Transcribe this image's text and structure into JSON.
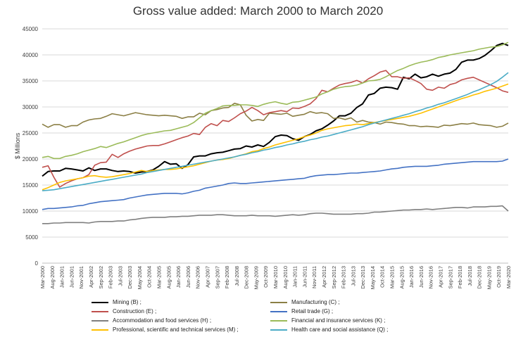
{
  "chart_data": {
    "type": "line",
    "title": "Gross value added: March 2000 to March 2020",
    "xlabel": "",
    "ylabel": "$ Millions",
    "ylim": [
      0,
      45000
    ],
    "yticks": [
      "0",
      "5000",
      "10000",
      "15000",
      "20000",
      "25000",
      "30000",
      "35000",
      "40000",
      "45000"
    ],
    "xticks": [
      "Mar-2000",
      "Aug-2000",
      "Jan-2001",
      "Jun-2001",
      "Nov-2001",
      "Apr-2002",
      "Sep-2002",
      "Feb-2003",
      "Jul-2003",
      "Dec-2003",
      "May-2004",
      "Oct-2004",
      "Mar-2005",
      "Aug-2005",
      "Jan-2006",
      "Jun-2006",
      "Nov-2006",
      "Apr-2007",
      "Sep-2007",
      "Feb-2008",
      "Jul-2008",
      "Dec-2008",
      "May-2009",
      "Oct-2009",
      "Mar-2010",
      "Aug-2010",
      "Jan-2011",
      "Jun-2011",
      "Nov-2011",
      "Apr-2012",
      "Sep-2012",
      "Feb-2013",
      "Jul-2013",
      "Dec-2013",
      "May-2014",
      "Oct-2014",
      "Mar-2015",
      "Aug-2015",
      "Jan-2016",
      "Jun-2016",
      "Nov-2016",
      "Apr-2017",
      "Sep-2017",
      "Feb-2018",
      "Jul-2018",
      "Dec-2018",
      "May-2019",
      "Oct-2019",
      "Mar-2020"
    ],
    "x": [
      "Mar-2000",
      "Jun-2000",
      "Sep-2000",
      "Dec-2000",
      "Mar-2001",
      "Jun-2001",
      "Sep-2001",
      "Dec-2001",
      "Mar-2002",
      "Jun-2002",
      "Sep-2002",
      "Dec-2002",
      "Mar-2003",
      "Jun-2003",
      "Sep-2003",
      "Dec-2003",
      "Mar-2004",
      "Jun-2004",
      "Sep-2004",
      "Dec-2004",
      "Mar-2005",
      "Jun-2005",
      "Sep-2005",
      "Dec-2005",
      "Mar-2006",
      "Jun-2006",
      "Sep-2006",
      "Dec-2006",
      "Mar-2007",
      "Jun-2007",
      "Sep-2007",
      "Dec-2007",
      "Mar-2008",
      "Jun-2008",
      "Sep-2008",
      "Dec-2008",
      "Mar-2009",
      "Jun-2009",
      "Sep-2009",
      "Dec-2009",
      "Mar-2010",
      "Jun-2010",
      "Sep-2010",
      "Dec-2010",
      "Mar-2011",
      "Jun-2011",
      "Sep-2011",
      "Dec-2011",
      "Mar-2012",
      "Jun-2012",
      "Sep-2012",
      "Dec-2012",
      "Mar-2013",
      "Jun-2013",
      "Sep-2013",
      "Dec-2013",
      "Mar-2014",
      "Jun-2014",
      "Sep-2014",
      "Dec-2014",
      "Mar-2015",
      "Jun-2015",
      "Sep-2015",
      "Dec-2015",
      "Mar-2016",
      "Jun-2016",
      "Sep-2016",
      "Dec-2016",
      "Mar-2017",
      "Jun-2017",
      "Sep-2017",
      "Dec-2017",
      "Mar-2018",
      "Jun-2018",
      "Sep-2018",
      "Dec-2018",
      "Mar-2019",
      "Jun-2019",
      "Sep-2019",
      "Dec-2019",
      "Mar-2020"
    ],
    "series": [
      {
        "name": "Mining (B) ;",
        "color": "#000000",
        "values": [
          16700,
          17600,
          17700,
          17700,
          18200,
          18100,
          17900,
          17700,
          18300,
          17800,
          18100,
          18100,
          17800,
          17600,
          17700,
          17600,
          17300,
          17500,
          17600,
          17900,
          18600,
          19500,
          19000,
          19100,
          18200,
          18900,
          20400,
          20600,
          20600,
          21000,
          21200,
          21300,
          21600,
          21900,
          22000,
          22500,
          22300,
          22700,
          22400,
          23200,
          24300,
          24600,
          24500,
          23900,
          23600,
          24300,
          24700,
          25400,
          25800,
          26500,
          27300,
          28300,
          28300,
          28800,
          29900,
          30600,
          32300,
          32600,
          33600,
          33800,
          33700,
          33400,
          35700,
          35400,
          36300,
          35600,
          35800,
          36300,
          35900,
          36300,
          36500,
          37200,
          38600,
          39000,
          39000,
          39300,
          39900,
          40800,
          41800,
          42200,
          41800
        ]
      },
      {
        "name": "Manufacturing (C) ;",
        "color": "#8b7f45",
        "values": [
          26700,
          26100,
          26600,
          26600,
          26100,
          26400,
          26400,
          27100,
          27500,
          27700,
          27800,
          28200,
          28700,
          28500,
          28300,
          28600,
          28900,
          28700,
          28500,
          28400,
          28300,
          28400,
          28300,
          28200,
          27800,
          28100,
          28100,
          28800,
          28500,
          29300,
          29500,
          29800,
          29900,
          30700,
          30400,
          28400,
          27300,
          27600,
          27400,
          28800,
          28700,
          28600,
          28800,
          28200,
          28400,
          28600,
          29100,
          28800,
          28900,
          28700,
          27800,
          27900,
          27600,
          27900,
          27100,
          27400,
          27100,
          27000,
          26700,
          27100,
          27000,
          26800,
          26700,
          26400,
          26400,
          26200,
          26300,
          26200,
          26100,
          26500,
          26400,
          26600,
          26800,
          26700,
          26900,
          26600,
          26500,
          26400,
          26100,
          26300,
          26900
        ]
      },
      {
        "name": "Construction (E) ;",
        "color": "#c0504d",
        "values": [
          18400,
          18700,
          16500,
          14600,
          15300,
          15800,
          16200,
          16400,
          17000,
          18800,
          19300,
          19400,
          20900,
          20300,
          21000,
          21500,
          21900,
          22200,
          22500,
          22600,
          22600,
          22900,
          23300,
          23700,
          24100,
          24400,
          24900,
          24700,
          26100,
          26800,
          26400,
          27400,
          27200,
          27900,
          28700,
          29200,
          29900,
          29300,
          28500,
          28900,
          29100,
          29300,
          29100,
          29800,
          29700,
          30100,
          30600,
          31600,
          33200,
          32900,
          33600,
          34200,
          34500,
          34700,
          35100,
          34600,
          35400,
          36000,
          36700,
          37000,
          35800,
          35800,
          35500,
          35600,
          35100,
          34500,
          33400,
          33200,
          33800,
          33600,
          34300,
          34600,
          35200,
          35500,
          35700,
          35200,
          34700,
          34200,
          33700,
          33100,
          32800
        ]
      },
      {
        "name": "Retail trade (G) ;",
        "color": "#4472c4",
        "values": [
          10300,
          10500,
          10500,
          10600,
          10700,
          10800,
          11000,
          11100,
          11400,
          11600,
          11800,
          11900,
          12000,
          12100,
          12200,
          12500,
          12700,
          12900,
          13100,
          13200,
          13300,
          13400,
          13400,
          13400,
          13300,
          13500,
          13800,
          14000,
          14400,
          14600,
          14800,
          15000,
          15300,
          15400,
          15300,
          15300,
          15400,
          15500,
          15600,
          15700,
          15800,
          15900,
          16000,
          16100,
          16200,
          16300,
          16600,
          16800,
          16900,
          17000,
          17000,
          17100,
          17200,
          17300,
          17300,
          17400,
          17500,
          17600,
          17700,
          17900,
          18100,
          18200,
          18400,
          18500,
          18600,
          18600,
          18600,
          18700,
          18800,
          19000,
          19100,
          19200,
          19300,
          19400,
          19500,
          19500,
          19500,
          19500,
          19500,
          19600,
          20000
        ]
      },
      {
        "name": "Accommodation and food services (H) ;",
        "color": "#7f7f7f",
        "values": [
          7600,
          7600,
          7700,
          7700,
          7800,
          7800,
          7800,
          7800,
          7700,
          7900,
          8000,
          8000,
          8000,
          8100,
          8100,
          8300,
          8400,
          8600,
          8700,
          8800,
          8800,
          8800,
          8900,
          8900,
          9000,
          9000,
          9100,
          9200,
          9200,
          9200,
          9300,
          9300,
          9200,
          9100,
          9100,
          9100,
          9200,
          9100,
          9100,
          9100,
          9000,
          9100,
          9200,
          9300,
          9200,
          9300,
          9500,
          9600,
          9600,
          9500,
          9400,
          9400,
          9400,
          9400,
          9500,
          9500,
          9600,
          9800,
          9800,
          9900,
          10000,
          10100,
          10200,
          10200,
          10300,
          10300,
          10400,
          10300,
          10400,
          10500,
          10600,
          10700,
          10700,
          10600,
          10800,
          10800,
          10800,
          10900,
          10900,
          11000,
          10000
        ]
      },
      {
        "name": "Financial and insurance services (K) ;",
        "color": "#9bbb59",
        "values": [
          20300,
          20500,
          20100,
          20100,
          20500,
          20700,
          21000,
          21400,
          21700,
          22000,
          22400,
          22200,
          22600,
          23000,
          23300,
          23700,
          24100,
          24500,
          24800,
          25000,
          25200,
          25400,
          25500,
          25800,
          26100,
          26400,
          27000,
          27900,
          28800,
          29300,
          29700,
          30200,
          30300,
          30300,
          30400,
          30400,
          30300,
          30100,
          30500,
          30800,
          31000,
          30700,
          30500,
          30900,
          31000,
          31300,
          31600,
          31900,
          32500,
          32900,
          33400,
          33700,
          33900,
          34000,
          34200,
          34600,
          35000,
          35100,
          35300,
          35800,
          36400,
          37000,
          37400,
          37900,
          38300,
          38600,
          38800,
          39100,
          39500,
          39700,
          40000,
          40200,
          40400,
          40600,
          40800,
          41100,
          41300,
          41500,
          41600,
          41900,
          42400
        ]
      },
      {
        "name": "Professional, scientific and technical services (M) ;",
        "color": "#ffc000",
        "values": [
          14100,
          14500,
          15000,
          15500,
          15800,
          16000,
          16200,
          16400,
          16700,
          16800,
          16600,
          16500,
          16600,
          16800,
          17000,
          17200,
          17500,
          17800,
          17600,
          17800,
          17900,
          18000,
          18000,
          18100,
          18300,
          18500,
          18700,
          19000,
          19300,
          19600,
          19800,
          19900,
          20100,
          20400,
          20700,
          21000,
          21400,
          21600,
          22000,
          22300,
          22700,
          23000,
          23300,
          23600,
          23900,
          24300,
          24600,
          25000,
          25500,
          25800,
          26000,
          26200,
          26400,
          26500,
          26700,
          26600,
          26800,
          27000,
          27200,
          27400,
          27600,
          27800,
          28000,
          28200,
          28500,
          28800,
          29200,
          29600,
          30000,
          30400,
          30800,
          31200,
          31600,
          31900,
          32300,
          32600,
          33000,
          33300,
          33600,
          34000,
          34400
        ]
      },
      {
        "name": "Health care and social assistance (Q) ;",
        "color": "#4bacc6",
        "values": [
          13900,
          14000,
          14100,
          14300,
          14500,
          14700,
          14900,
          15100,
          15300,
          15500,
          15700,
          15900,
          16100,
          16300,
          16500,
          16700,
          16900,
          17100,
          17400,
          17600,
          17800,
          18000,
          18200,
          18400,
          18600,
          18800,
          19000,
          19200,
          19400,
          19600,
          19800,
          20000,
          20200,
          20400,
          20700,
          20900,
          21200,
          21400,
          21700,
          21900,
          22200,
          22400,
          22700,
          22900,
          23200,
          23400,
          23700,
          23900,
          24200,
          24400,
          24700,
          25000,
          25300,
          25600,
          25900,
          26200,
          26600,
          26900,
          27200,
          27500,
          27800,
          28100,
          28400,
          28700,
          29100,
          29400,
          29800,
          30100,
          30500,
          30800,
          31200,
          31600,
          32000,
          32400,
          32900,
          33300,
          33800,
          34300,
          34900,
          35700,
          36600
        ]
      }
    ]
  }
}
